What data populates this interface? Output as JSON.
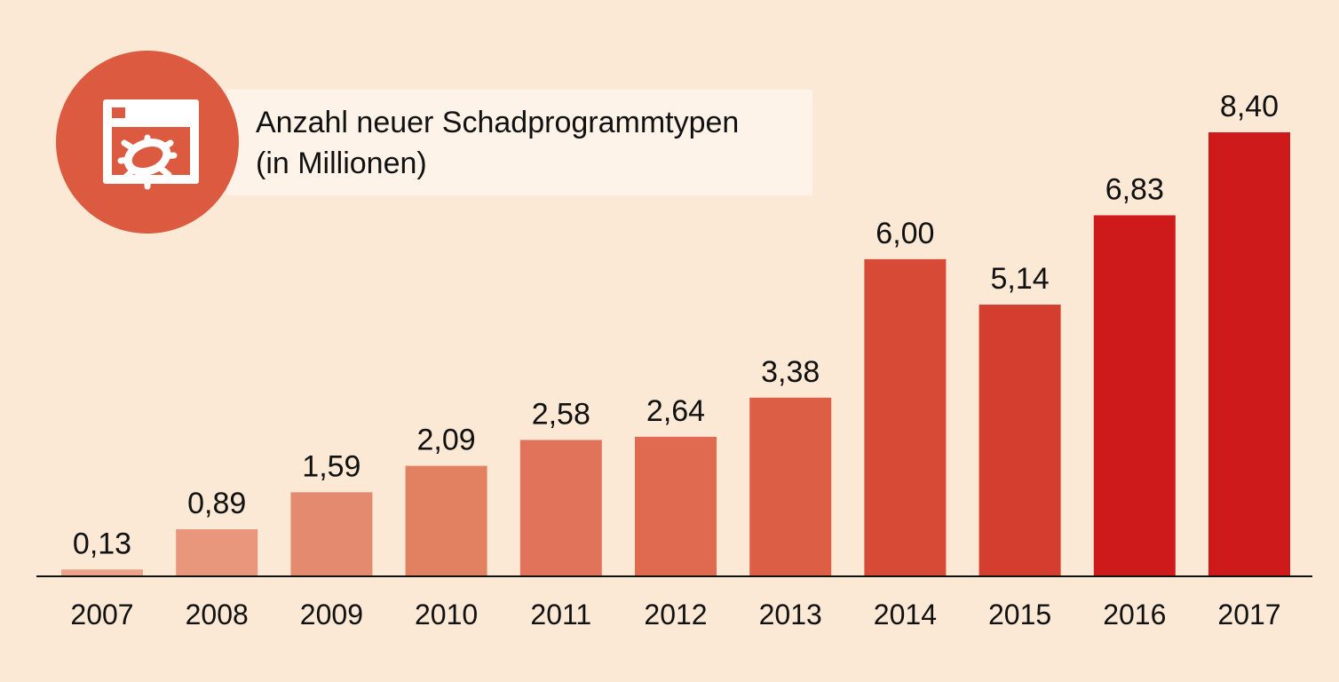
{
  "chart_data": {
    "type": "bar",
    "title": "Anzahl neuer Schadprogrammtypen",
    "subtitle": "(in Millionen)",
    "xlabel": "",
    "ylabel": "",
    "ylim": [
      0,
      8.4
    ],
    "grid": false,
    "categories": [
      "2007",
      "2008",
      "2009",
      "2010",
      "2011",
      "2012",
      "2013",
      "2014",
      "2015",
      "2016",
      "2017"
    ],
    "values": [
      0.13,
      0.89,
      1.59,
      2.09,
      2.58,
      2.64,
      3.38,
      6.0,
      5.14,
      6.83,
      8.4
    ],
    "value_labels": [
      "0,13",
      "0,89",
      "1,59",
      "2,09",
      "2,58",
      "2,64",
      "3,38",
      "6,00",
      "5,14",
      "6,83",
      "8,40"
    ],
    "colors": [
      "#e9a48b",
      "#e8977c",
      "#e48a6f",
      "#e28062",
      "#e07359",
      "#df6a4f",
      "#dc5e45",
      "#d64a36",
      "#d43e2f",
      "#cf1a1b",
      "#cf1a1b"
    ],
    "icon": "malware-window-bug-icon",
    "icon_color": "#dc5b40",
    "background": "#fbe9d6"
  }
}
